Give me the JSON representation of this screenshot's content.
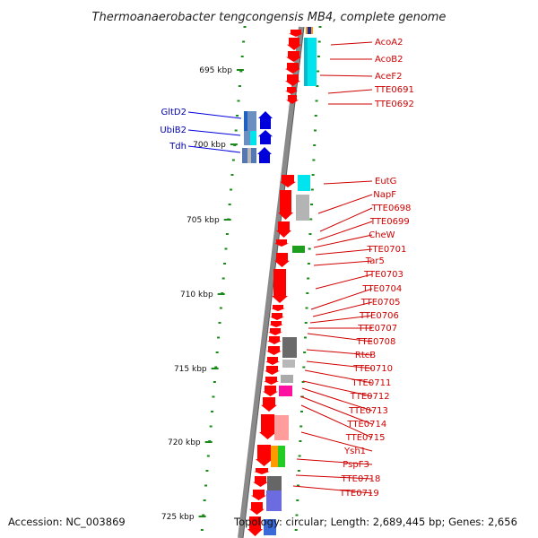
{
  "title": "Thermoanaerobacter tengcongensis MB4, complete genome",
  "accession": "Accession: NC_003869",
  "topology": "Topology: circular; Length: 2,689,445 bp; Genes: 2,656",
  "colors": {
    "gene": "#ff0000",
    "left_label": "#0000aa",
    "right_label": "#d00000",
    "tick": "#1a8a1a"
  },
  "scale_labels": [
    "695 kbp",
    "700 kbp",
    "705 kbp",
    "710 kbp",
    "715 kbp",
    "720 kbp",
    "725 kbp"
  ],
  "left_genes": [
    "GltD2",
    "UbiB2",
    "Tdh"
  ],
  "right_genes": [
    "AcoA2",
    "AcoB2",
    "AceF2",
    "TTE0691",
    "TTE0692",
    "EutG",
    "NapF",
    "TTE0698",
    "TTE0699",
    "CheW",
    "TTE0701",
    "Tar5",
    "TTE0703",
    "TTE0704",
    "TTE0705",
    "TTE0706",
    "TTE0707",
    "TTE0708",
    "RtcB",
    "TTE0710",
    "TTE0711",
    "TTE0712",
    "TTE0713",
    "TTE0714",
    "TTE0715",
    "Ysh1",
    "PspF3",
    "TTE0718",
    "TTE0719"
  ]
}
